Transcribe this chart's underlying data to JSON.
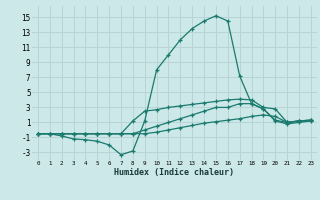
{
  "xlabel": "Humidex (Indice chaleur)",
  "bg_color": "#cce8e8",
  "grid_color": "#b8d4d4",
  "line_color": "#1a7a6e",
  "xlim": [
    -0.5,
    23.5
  ],
  "ylim": [
    -4,
    16.5
  ],
  "xticks": [
    0,
    1,
    2,
    3,
    4,
    5,
    6,
    7,
    8,
    9,
    10,
    11,
    12,
    13,
    14,
    15,
    16,
    17,
    18,
    19,
    20,
    21,
    22,
    23
  ],
  "yticks": [
    -3,
    -1,
    1,
    3,
    5,
    7,
    9,
    11,
    13,
    15
  ],
  "x": [
    0,
    1,
    2,
    3,
    4,
    5,
    6,
    7,
    8,
    9,
    10,
    11,
    12,
    13,
    14,
    15,
    16,
    17,
    18,
    19,
    20,
    21,
    22,
    23
  ],
  "line_main_y": [
    -0.5,
    -0.5,
    -0.8,
    -1.2,
    -1.3,
    -1.5,
    -2.0,
    -3.3,
    -2.8,
    1.2,
    8.0,
    10.0,
    12.0,
    13.5,
    14.5,
    15.2,
    14.5,
    7.2,
    3.5,
    2.8,
    1.2,
    0.8,
    1.0,
    1.2
  ],
  "line_upper_y": [
    -0.5,
    -0.5,
    -0.5,
    -0.5,
    -0.5,
    -0.5,
    -0.5,
    -0.5,
    1.2,
    2.5,
    2.7,
    3.0,
    3.2,
    3.4,
    3.6,
    3.8,
    4.0,
    4.1,
    4.0,
    3.0,
    2.8,
    1.0,
    1.2,
    1.3
  ],
  "line_mid_y": [
    -0.5,
    -0.5,
    -0.5,
    -0.5,
    -0.5,
    -0.5,
    -0.5,
    -0.5,
    -0.5,
    0.0,
    0.5,
    1.0,
    1.5,
    2.0,
    2.5,
    3.0,
    3.0,
    3.5,
    3.5,
    2.8,
    1.3,
    1.0,
    1.2,
    1.3
  ],
  "line_low_y": [
    -0.5,
    -0.5,
    -0.5,
    -0.5,
    -0.5,
    -0.5,
    -0.5,
    -0.5,
    -0.5,
    -0.5,
    -0.3,
    0.0,
    0.3,
    0.6,
    0.9,
    1.1,
    1.3,
    1.5,
    1.8,
    2.0,
    1.8,
    1.0,
    1.2,
    1.3
  ]
}
